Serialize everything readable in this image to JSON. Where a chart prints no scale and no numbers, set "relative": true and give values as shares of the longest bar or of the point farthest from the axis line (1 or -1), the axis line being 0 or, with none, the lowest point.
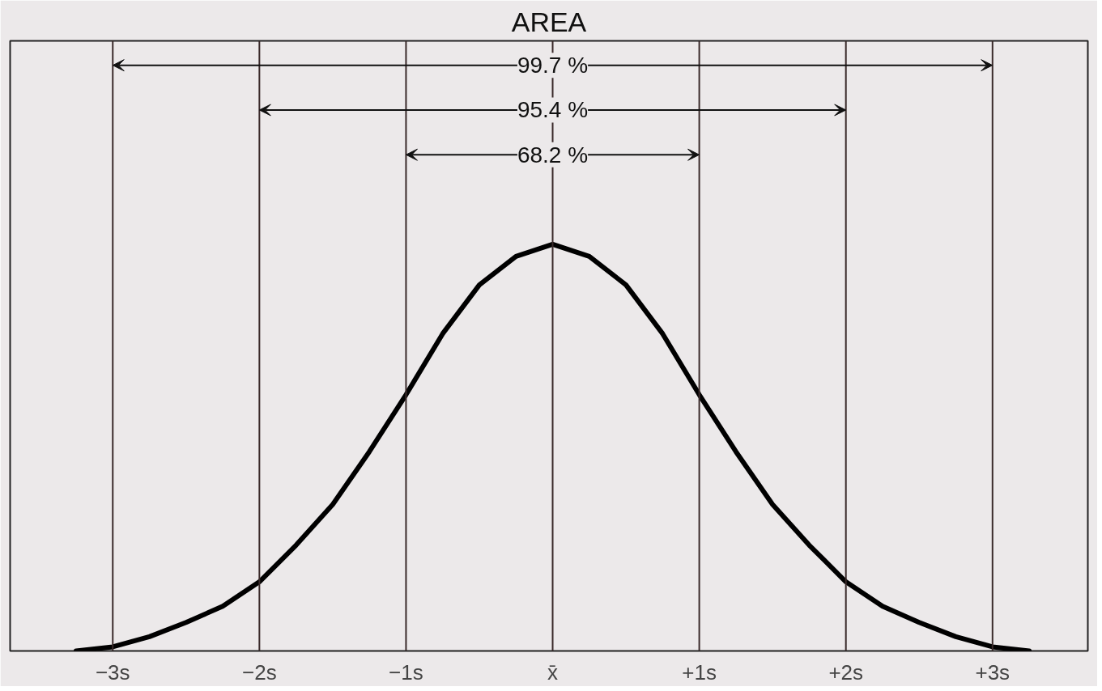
{
  "chart_data": {
    "type": "line",
    "title": "AREA",
    "relative": true,
    "xlim": [
      -3.7,
      3.65
    ],
    "xticks": [
      {
        "value": -3,
        "label": "−3s"
      },
      {
        "value": -2,
        "label": "−2s"
      },
      {
        "value": -1,
        "label": "−1s"
      },
      {
        "value": 0,
        "label": "x̄"
      },
      {
        "value": 1,
        "label": "+1s"
      },
      {
        "value": 2,
        "label": "+2s"
      },
      {
        "value": 3,
        "label": "+3s"
      }
    ],
    "tick_labels": "x",
    "grid": false,
    "marker": "none",
    "line_style": "solid",
    "series": [
      {
        "color": "#000000",
        "x": [
          -3.25,
          -3,
          -2.75,
          -2.5,
          -2.25,
          -2,
          -1.75,
          -1.5,
          -1.25,
          -1,
          -0.75,
          -0.5,
          -0.25,
          0,
          0.25,
          0.5,
          0.75,
          1,
          1.25,
          1.5,
          1.75,
          2,
          2.25,
          2.5,
          2.75,
          3,
          3.25
        ],
        "values": [
          0,
          0.01,
          0.035,
          0.07,
          0.11,
          0.17,
          0.26,
          0.36,
          0.49,
          0.63,
          0.78,
          0.9,
          0.97,
          1,
          0.97,
          0.9,
          0.78,
          0.63,
          0.49,
          0.36,
          0.26,
          0.17,
          0.11,
          0.07,
          0.035,
          0.01,
          0
        ]
      }
    ],
    "ref_lines": [
      {
        "axis": "x",
        "value": -3,
        "color": "#3a2a2a"
      },
      {
        "axis": "x",
        "value": -2,
        "color": "#3a2a2a"
      },
      {
        "axis": "x",
        "value": -1,
        "color": "#3a2a2a"
      },
      {
        "axis": "x",
        "value": 0,
        "color": "#3a2a2a"
      },
      {
        "axis": "x",
        "value": 1,
        "color": "#3a2a2a"
      },
      {
        "axis": "x",
        "value": 2,
        "color": "#3a2a2a"
      },
      {
        "axis": "x",
        "value": 3,
        "color": "#3a2a2a"
      }
    ],
    "annotations": [
      "99.7 %",
      "95.4 %",
      "68.2 %"
    ]
  }
}
